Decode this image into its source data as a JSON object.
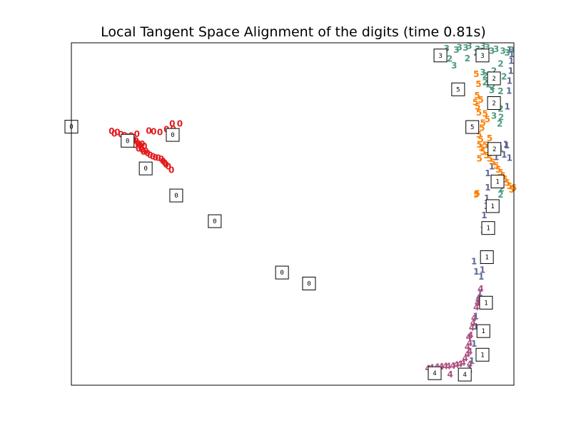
{
  "chart_data": {
    "type": "scatter",
    "title": "Local Tangent Space Alignment of the digits (time 0.81s)",
    "xlabel": "",
    "ylabel": "",
    "xlim": [
      0,
      1
    ],
    "ylim": [
      0,
      1
    ],
    "axis_ticks": false,
    "grid": false,
    "point_marker": "digit text",
    "series": [
      {
        "digit": "0",
        "color": "#e41a1c",
        "points": [
          [
            0.091,
            0.741
          ],
          [
            0.097,
            0.733
          ],
          [
            0.104,
            0.737
          ],
          [
            0.112,
            0.731
          ],
          [
            0.12,
            0.728
          ],
          [
            0.127,
            0.724
          ],
          [
            0.134,
            0.72
          ],
          [
            0.141,
            0.716
          ],
          [
            0.146,
            0.712
          ],
          [
            0.15,
            0.705
          ],
          [
            0.155,
            0.7
          ],
          [
            0.157,
            0.693
          ],
          [
            0.152,
            0.69
          ],
          [
            0.16,
            0.686
          ],
          [
            0.163,
            0.68
          ],
          [
            0.168,
            0.682
          ],
          [
            0.172,
            0.676
          ],
          [
            0.178,
            0.671
          ],
          [
            0.184,
            0.667
          ],
          [
            0.19,
            0.664
          ],
          [
            0.196,
            0.662
          ],
          [
            0.203,
            0.659
          ],
          [
            0.207,
            0.653
          ],
          [
            0.211,
            0.648
          ],
          [
            0.214,
            0.643
          ],
          [
            0.219,
            0.637
          ],
          [
            0.226,
            0.627
          ],
          [
            0.165,
            0.697
          ],
          [
            0.16,
            0.703
          ],
          [
            0.175,
            0.742
          ],
          [
            0.186,
            0.74
          ],
          [
            0.2,
            0.738
          ],
          [
            0.215,
            0.746
          ],
          [
            0.228,
            0.762
          ],
          [
            0.23,
            0.747
          ],
          [
            0.245,
            0.762
          ],
          [
            0.135,
            0.727
          ],
          [
            0.148,
            0.732
          ],
          [
            0.144,
            0.7
          ]
        ]
      },
      {
        "digit": "1",
        "color": "#5e6796",
        "points": [
          [
            0.99,
            0.978
          ],
          [
            0.995,
            0.966
          ],
          [
            0.994,
            0.946
          ],
          [
            0.993,
            0.917
          ],
          [
            0.99,
            0.887
          ],
          [
            0.989,
            0.858
          ],
          [
            0.985,
            0.812
          ],
          [
            0.982,
            0.702
          ],
          [
            0.984,
            0.699
          ],
          [
            0.978,
            0.672
          ],
          [
            0.99,
            0.662
          ],
          [
            0.95,
            0.638
          ],
          [
            0.941,
            0.618
          ],
          [
            0.941,
            0.576
          ],
          [
            0.939,
            0.545
          ],
          [
            0.938,
            0.522
          ],
          [
            0.933,
            0.495
          ],
          [
            0.93,
            0.452
          ],
          [
            0.932,
            0.38
          ],
          [
            0.929,
            0.335
          ],
          [
            0.926,
            0.316
          ],
          [
            0.923,
            0.268
          ],
          [
            0.922,
            0.248
          ],
          [
            0.914,
            0.2
          ],
          [
            0.914,
            0.17
          ],
          [
            0.91,
            0.12
          ],
          [
            0.905,
            0.07
          ],
          [
            0.9,
            0.045
          ],
          [
            0.96,
            0.665
          ],
          [
            0.97,
            0.69
          ],
          [
            0.91,
            0.36
          ],
          [
            0.915,
            0.33
          ],
          [
            0.918,
            0.24
          ]
        ]
      },
      {
        "digit": "2",
        "color": "#4d9b7d",
        "points": [
          [
            0.835,
            0.965
          ],
          [
            0.855,
            0.952
          ],
          [
            0.895,
            0.953
          ],
          [
            0.915,
            0.97
          ],
          [
            0.937,
            0.968
          ],
          [
            0.938,
            0.955
          ],
          [
            0.97,
            0.938
          ],
          [
            0.955,
            0.917
          ],
          [
            0.935,
            0.903
          ],
          [
            0.935,
            0.883
          ],
          [
            0.943,
            0.877
          ],
          [
            0.952,
            0.871
          ],
          [
            0.97,
            0.857
          ],
          [
            0.97,
            0.806
          ],
          [
            0.971,
            0.781
          ],
          [
            0.968,
            0.762
          ],
          [
            0.972,
            0.573
          ],
          [
            0.97,
            0.555
          ],
          [
            0.955,
            0.68
          ],
          [
            0.978,
            0.9
          ]
        ]
      },
      {
        "digit": "3",
        "color": "#4d9b7d",
        "points": [
          [
            0.848,
            0.982
          ],
          [
            0.87,
            0.978
          ],
          [
            0.877,
            0.985
          ],
          [
            0.891,
            0.984
          ],
          [
            0.899,
            0.99
          ],
          [
            0.918,
            0.98
          ],
          [
            0.93,
            0.99
          ],
          [
            0.94,
            0.985
          ],
          [
            0.95,
            0.975
          ],
          [
            0.96,
            0.98
          ],
          [
            0.975,
            0.975
          ],
          [
            0.985,
            0.97
          ],
          [
            0.995,
            0.978
          ],
          [
            0.865,
            0.932
          ],
          [
            0.93,
            0.912
          ],
          [
            0.945,
            0.905
          ],
          [
            0.96,
            0.9
          ],
          [
            0.95,
            0.86
          ],
          [
            0.955,
            0.785
          ],
          [
            0.94,
            0.7
          ]
        ]
      },
      {
        "digit": "5",
        "color": "#ff7f00",
        "points": [
          [
            0.915,
            0.907
          ],
          [
            0.92,
            0.878
          ],
          [
            0.917,
            0.845
          ],
          [
            0.925,
            0.832
          ],
          [
            0.913,
            0.825
          ],
          [
            0.918,
            0.812
          ],
          [
            0.921,
            0.795
          ],
          [
            0.935,
            0.792
          ],
          [
            0.94,
            0.775
          ],
          [
            0.93,
            0.765
          ],
          [
            0.928,
            0.75
          ],
          [
            0.921,
            0.73
          ],
          [
            0.925,
            0.717
          ],
          [
            0.922,
            0.701
          ],
          [
            0.927,
            0.692
          ],
          [
            0.93,
            0.68
          ],
          [
            0.938,
            0.67
          ],
          [
            0.945,
            0.66
          ],
          [
            0.952,
            0.65
          ],
          [
            0.96,
            0.64
          ],
          [
            0.965,
            0.628
          ],
          [
            0.97,
            0.62
          ],
          [
            0.975,
            0.61
          ],
          [
            0.98,
            0.6
          ],
          [
            0.985,
            0.59
          ],
          [
            0.99,
            0.58
          ],
          [
            0.995,
            0.57
          ],
          [
            1.0,
            0.575
          ],
          [
            0.915,
            0.555
          ],
          [
            0.917,
            0.558
          ],
          [
            0.922,
            0.66
          ],
          [
            0.935,
            0.7
          ],
          [
            0.945,
            0.72
          ]
        ]
      },
      {
        "digit": "4",
        "color": "#ae4f80",
        "points": [
          [
            0.925,
            0.28
          ],
          [
            0.921,
            0.255
          ],
          [
            0.915,
            0.226
          ],
          [
            0.91,
            0.195
          ],
          [
            0.905,
            0.167
          ],
          [
            0.902,
            0.145
          ],
          [
            0.9,
            0.122
          ],
          [
            0.9,
            0.097
          ],
          [
            0.895,
            0.09
          ],
          [
            0.89,
            0.077
          ],
          [
            0.885,
            0.065
          ],
          [
            0.878,
            0.06
          ],
          [
            0.87,
            0.058
          ],
          [
            0.862,
            0.055
          ],
          [
            0.852,
            0.054
          ],
          [
            0.845,
            0.054
          ],
          [
            0.836,
            0.053
          ],
          [
            0.826,
            0.052
          ],
          [
            0.814,
            0.05
          ],
          [
            0.806,
            0.048
          ],
          [
            0.898,
            0.14
          ],
          [
            0.908,
            0.18
          ],
          [
            0.918,
            0.24
          ],
          [
            0.856,
            0.03
          ],
          [
            0.895,
            0.11
          ],
          [
            0.9,
            0.06
          ]
        ]
      }
    ],
    "thumbnails": [
      {
        "digit": "0",
        "x": 0.0,
        "y": 0.755
      },
      {
        "digit": "0",
        "x": 0.127,
        "y": 0.714
      },
      {
        "digit": "0",
        "x": 0.229,
        "y": 0.731
      },
      {
        "digit": "0",
        "x": 0.168,
        "y": 0.633
      },
      {
        "digit": "0",
        "x": 0.237,
        "y": 0.554
      },
      {
        "digit": "0",
        "x": 0.324,
        "y": 0.479
      },
      {
        "digit": "0",
        "x": 0.476,
        "y": 0.329
      },
      {
        "digit": "0",
        "x": 0.537,
        "y": 0.297
      },
      {
        "digit": "3",
        "x": 0.834,
        "y": 0.963
      },
      {
        "digit": "3",
        "x": 0.929,
        "y": 0.963
      },
      {
        "digit": "2",
        "x": 0.955,
        "y": 0.896
      },
      {
        "digit": "5",
        "x": 0.874,
        "y": 0.864
      },
      {
        "digit": "2",
        "x": 0.955,
        "y": 0.824
      },
      {
        "digit": "5",
        "x": 0.906,
        "y": 0.754
      },
      {
        "digit": "2",
        "x": 0.956,
        "y": 0.69
      },
      {
        "digit": "1",
        "x": 0.963,
        "y": 0.595
      },
      {
        "digit": "1",
        "x": 0.952,
        "y": 0.523
      },
      {
        "digit": "1",
        "x": 0.942,
        "y": 0.459
      },
      {
        "digit": "1",
        "x": 0.939,
        "y": 0.374
      },
      {
        "digit": "1",
        "x": 0.937,
        "y": 0.241
      },
      {
        "digit": "1",
        "x": 0.931,
        "y": 0.158
      },
      {
        "digit": "1",
        "x": 0.929,
        "y": 0.089
      },
      {
        "digit": "4",
        "x": 0.821,
        "y": 0.035
      },
      {
        "digit": "4",
        "x": 0.889,
        "y": 0.031
      }
    ]
  }
}
